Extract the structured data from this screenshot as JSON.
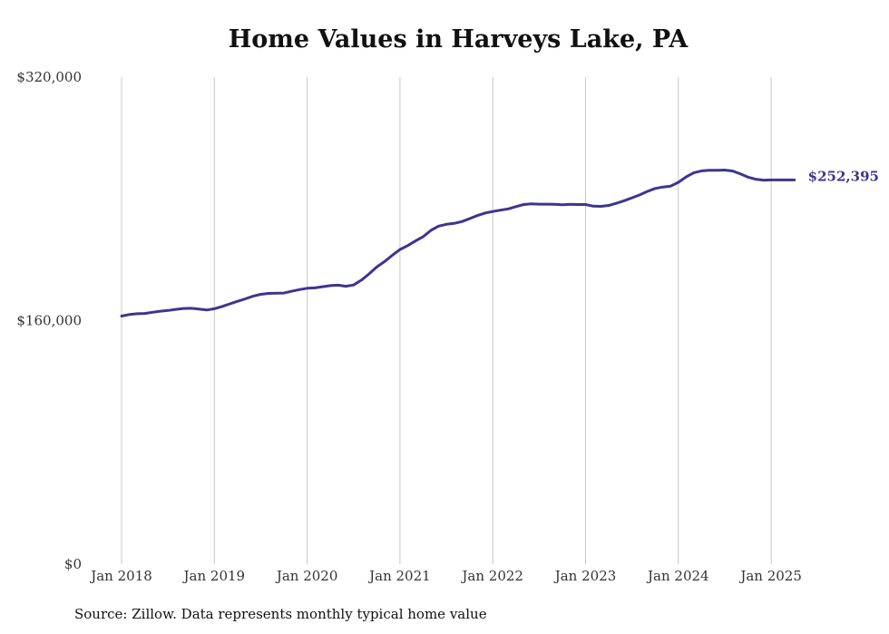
{
  "source_note": "Source: Zillow. Data represents monthly typical home value",
  "colors": {
    "line": "#3d3591",
    "grid": "#c8c8c8"
  },
  "chart_data": {
    "type": "line",
    "title": "Home Values in Harveys Lake, PA",
    "xlabel": "",
    "ylabel": "",
    "ylim": [
      0,
      320000
    ],
    "y_ticks": [
      0,
      160000,
      320000
    ],
    "y_tick_labels": [
      "$0",
      "$160,000",
      "$320,000"
    ],
    "x_tick_labels": [
      "Jan 2018",
      "Jan 2019",
      "Jan 2020",
      "Jan 2021",
      "Jan 2022",
      "Jan 2023",
      "Jan 2024",
      "Jan 2025"
    ],
    "grid": "vertical",
    "end_label": "$252,395",
    "series": [
      {
        "x": [
          "2018-01",
          "2018-02",
          "2018-03",
          "2018-04",
          "2018-05",
          "2018-06",
          "2018-07",
          "2018-08",
          "2018-09",
          "2018-10",
          "2018-11",
          "2018-12",
          "2019-01",
          "2019-02",
          "2019-03",
          "2019-04",
          "2019-05",
          "2019-06",
          "2019-07",
          "2019-08",
          "2019-09",
          "2019-10",
          "2019-11",
          "2019-12",
          "2020-01",
          "2020-02",
          "2020-03",
          "2020-04",
          "2020-05",
          "2020-06",
          "2020-07",
          "2020-08",
          "2020-09",
          "2020-10",
          "2020-11",
          "2020-12",
          "2021-01",
          "2021-02",
          "2021-03",
          "2021-04",
          "2021-05",
          "2021-06",
          "2021-07",
          "2021-08",
          "2021-09",
          "2021-10",
          "2021-11",
          "2021-12",
          "2022-01",
          "2022-02",
          "2022-03",
          "2022-04",
          "2022-05",
          "2022-06",
          "2022-07",
          "2022-08",
          "2022-09",
          "2022-10",
          "2022-11",
          "2022-12",
          "2023-01",
          "2023-02",
          "2023-03",
          "2023-04",
          "2023-05",
          "2023-06",
          "2023-07",
          "2023-08",
          "2023-09",
          "2023-10",
          "2023-11",
          "2023-12",
          "2024-01",
          "2024-02",
          "2024-03",
          "2024-04",
          "2024-05",
          "2024-06",
          "2024-07",
          "2024-08",
          "2024-09",
          "2024-10",
          "2024-11",
          "2024-12",
          "2025-01",
          "2025-02",
          "2025-03",
          "2025-04"
        ],
        "values": [
          163000,
          164000,
          164500,
          164700,
          165500,
          166200,
          166700,
          167400,
          168000,
          168100,
          167600,
          167000,
          167800,
          169300,
          171000,
          172700,
          174300,
          176000,
          177300,
          177900,
          178000,
          178100,
          179300,
          180400,
          181300,
          181500,
          182300,
          183000,
          183300,
          182600,
          183400,
          186600,
          190700,
          195200,
          198800,
          202900,
          206700,
          209300,
          212300,
          215200,
          219300,
          222100,
          223300,
          223900,
          225100,
          227000,
          229000,
          230700,
          231700,
          232600,
          233400,
          234900,
          236300,
          236700,
          236500,
          236500,
          236400,
          236100,
          236400,
          236300,
          236300,
          235200,
          235100,
          235700,
          237100,
          238800,
          240700,
          242600,
          244900,
          246800,
          247800,
          248400,
          250900,
          254400,
          257200,
          258400,
          258800,
          258800,
          258900,
          258300,
          256500,
          254300,
          252900,
          252300,
          252400,
          252400,
          252400,
          252395
        ]
      }
    ]
  }
}
